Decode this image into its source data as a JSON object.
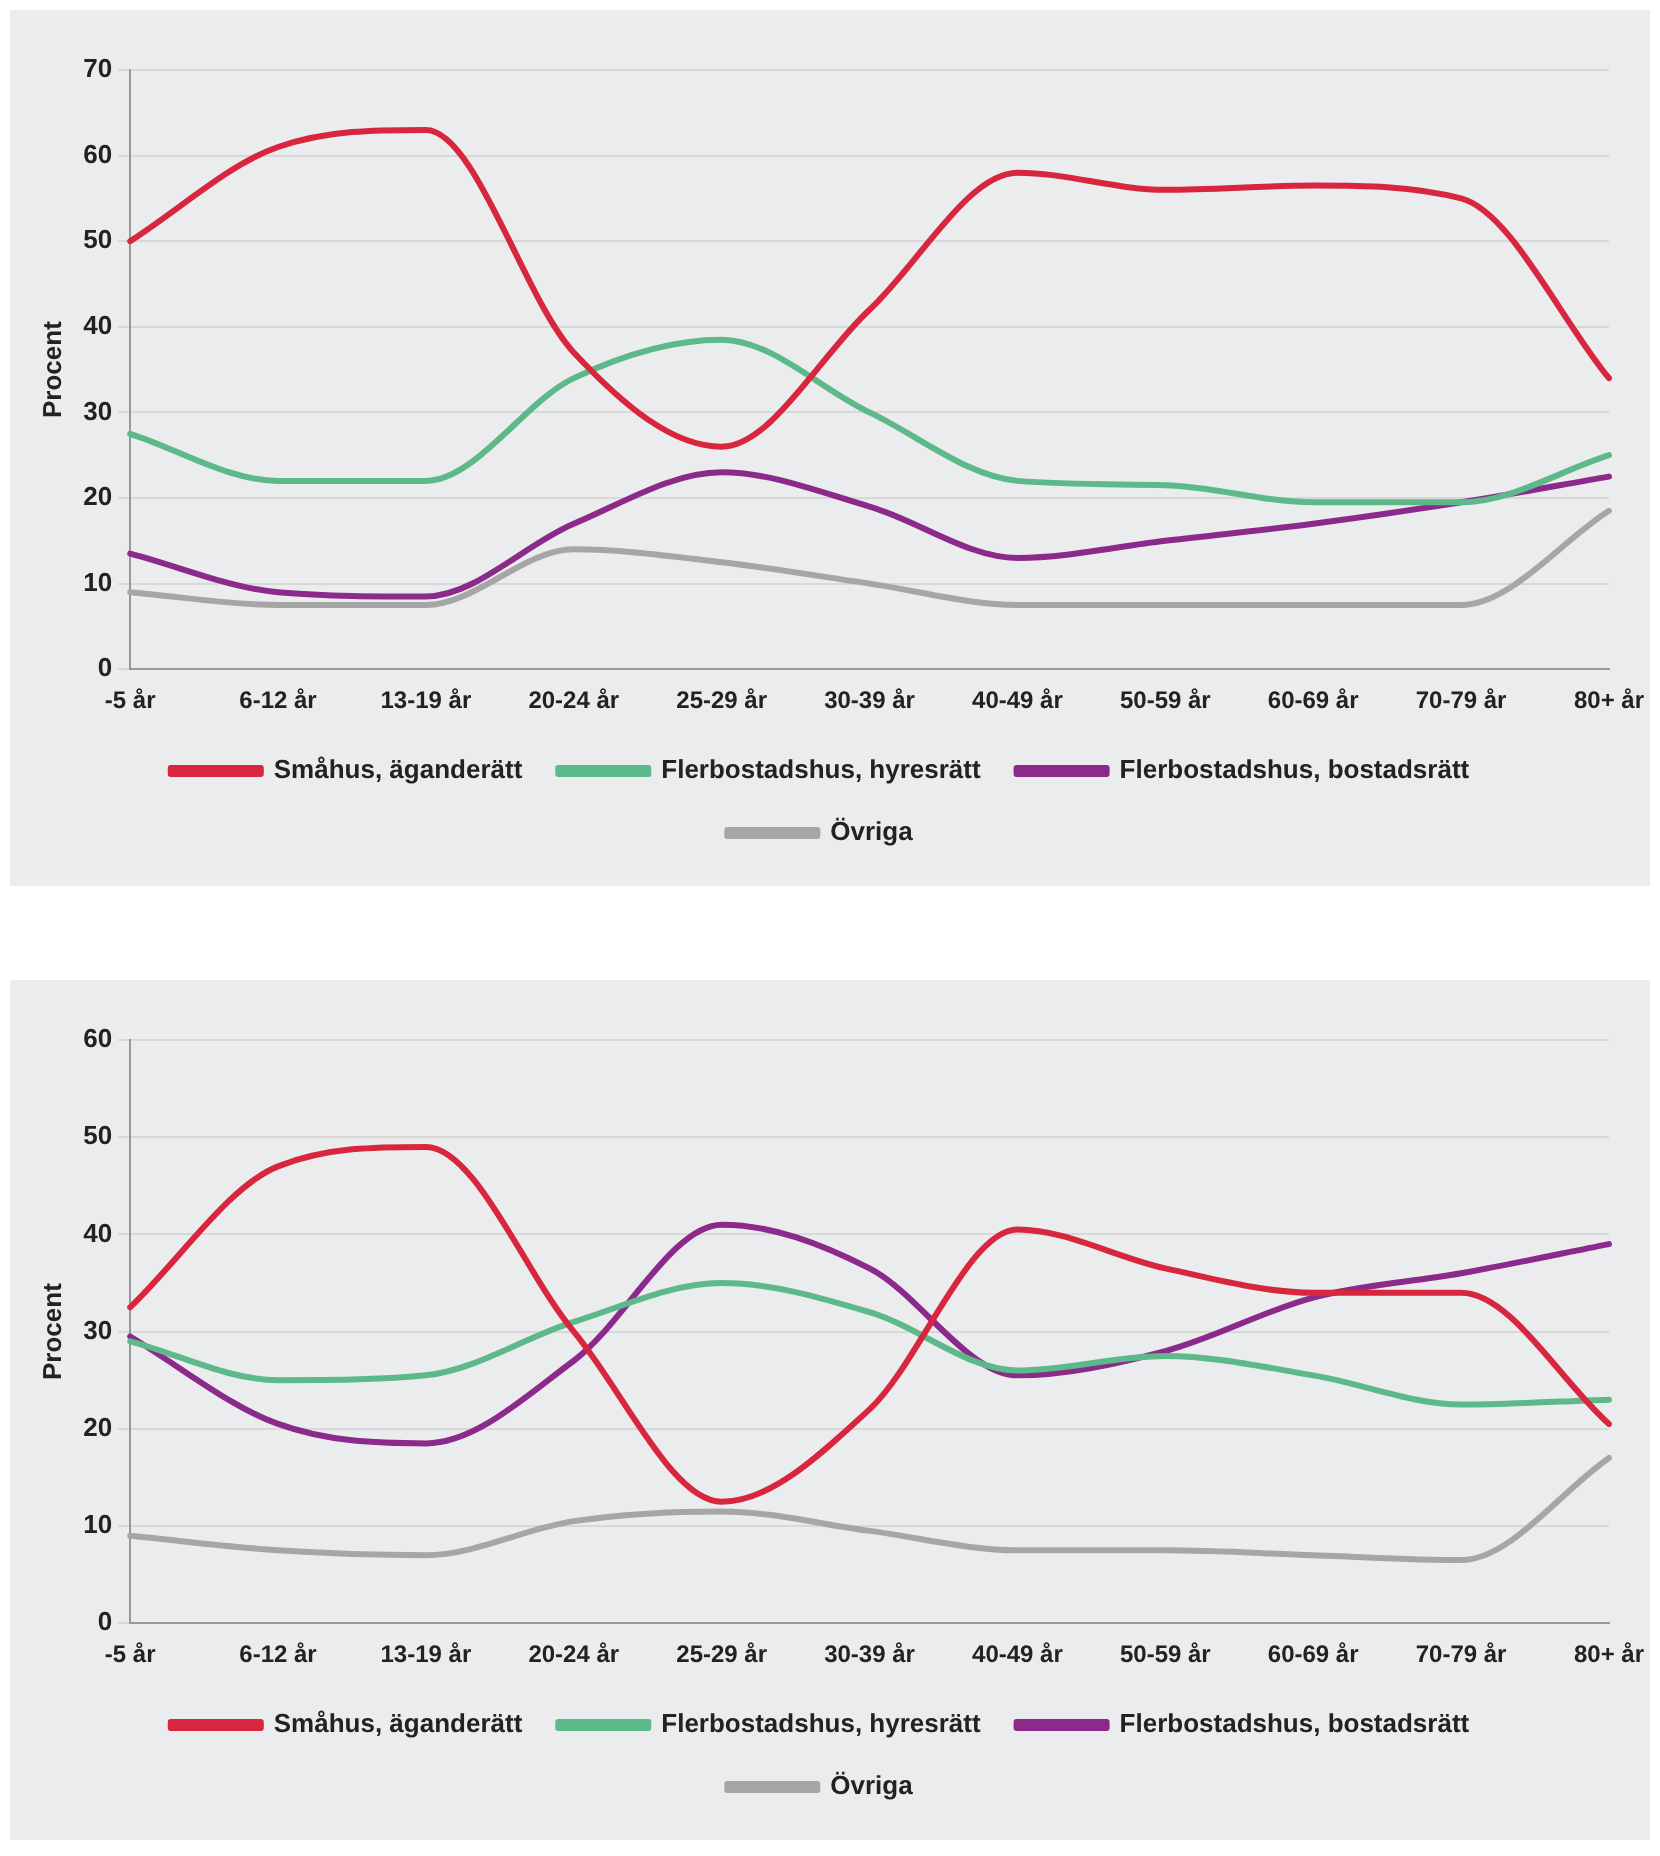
{
  "chart_data": [
    {
      "type": "line",
      "ylabel": "Procent",
      "categories": [
        "-5 år",
        "6-12 år",
        "13-19 år",
        "20-24 år",
        "25-29 år",
        "30-39 år",
        "40-49 år",
        "50-59 år",
        "60-69 år",
        "70-79 år",
        "80+ år"
      ],
      "ylim": [
        0,
        70
      ],
      "yticks": [
        0,
        10,
        20,
        30,
        40,
        50,
        60,
        70
      ],
      "grid": "y",
      "legend": "bottom",
      "marker": "none",
      "series": [
        {
          "name": "Småhus, äganderätt",
          "color": "#d7263d",
          "values": [
            50,
            61,
            63,
            37,
            26,
            42,
            58,
            56,
            56.5,
            55,
            34
          ]
        },
        {
          "name": "Flerbostadshus, hyresrätt",
          "color": "#5db88a",
          "values": [
            27.5,
            22,
            22,
            34,
            38.5,
            30,
            22,
            21.5,
            19.5,
            19.5,
            25
          ]
        },
        {
          "name": "Flerbostadshus, bostadsrätt",
          "color": "#8b2a8b",
          "values": [
            13.5,
            9,
            8.5,
            17,
            23,
            19,
            13,
            15,
            17,
            19.5,
            22.5
          ]
        },
        {
          "name": "Övriga",
          "color": "#a6a6a6",
          "values": [
            9,
            7.5,
            7.5,
            14,
            12.5,
            10,
            7.5,
            7.5,
            7.5,
            7.5,
            18.5
          ]
        }
      ]
    },
    {
      "type": "line",
      "ylabel": "Procent",
      "categories": [
        "-5 år",
        "6-12 år",
        "13-19 år",
        "20-24 år",
        "25-29 år",
        "30-39 år",
        "40-49 år",
        "50-59 år",
        "60-69 år",
        "70-79 år",
        "80+ år"
      ],
      "ylim": [
        0,
        60
      ],
      "yticks": [
        0,
        10,
        20,
        30,
        40,
        50,
        60
      ],
      "grid": "y",
      "legend": "bottom",
      "marker": "none",
      "series": [
        {
          "name": "Småhus, äganderätt",
          "color": "#d7263d",
          "values": [
            32.5,
            47,
            49,
            30,
            12.5,
            22,
            40.5,
            36.5,
            34,
            34,
            20.5
          ]
        },
        {
          "name": "Flerbostadshus, hyresrätt",
          "color": "#5db88a",
          "values": [
            29,
            25,
            25.5,
            31,
            35,
            32,
            26,
            27.5,
            25.5,
            22.5,
            23
          ]
        },
        {
          "name": "Flerbostadshus, bostadsrätt",
          "color": "#8b2a8b",
          "values": [
            29.5,
            20.5,
            18.5,
            27,
            41,
            36.5,
            25.5,
            28,
            33.5,
            36,
            39
          ]
        },
        {
          "name": "Övriga",
          "color": "#a6a6a6",
          "values": [
            9,
            7.5,
            7,
            10.5,
            11.5,
            9.5,
            7.5,
            7.5,
            7,
            6.5,
            17
          ]
        }
      ]
    }
  ]
}
